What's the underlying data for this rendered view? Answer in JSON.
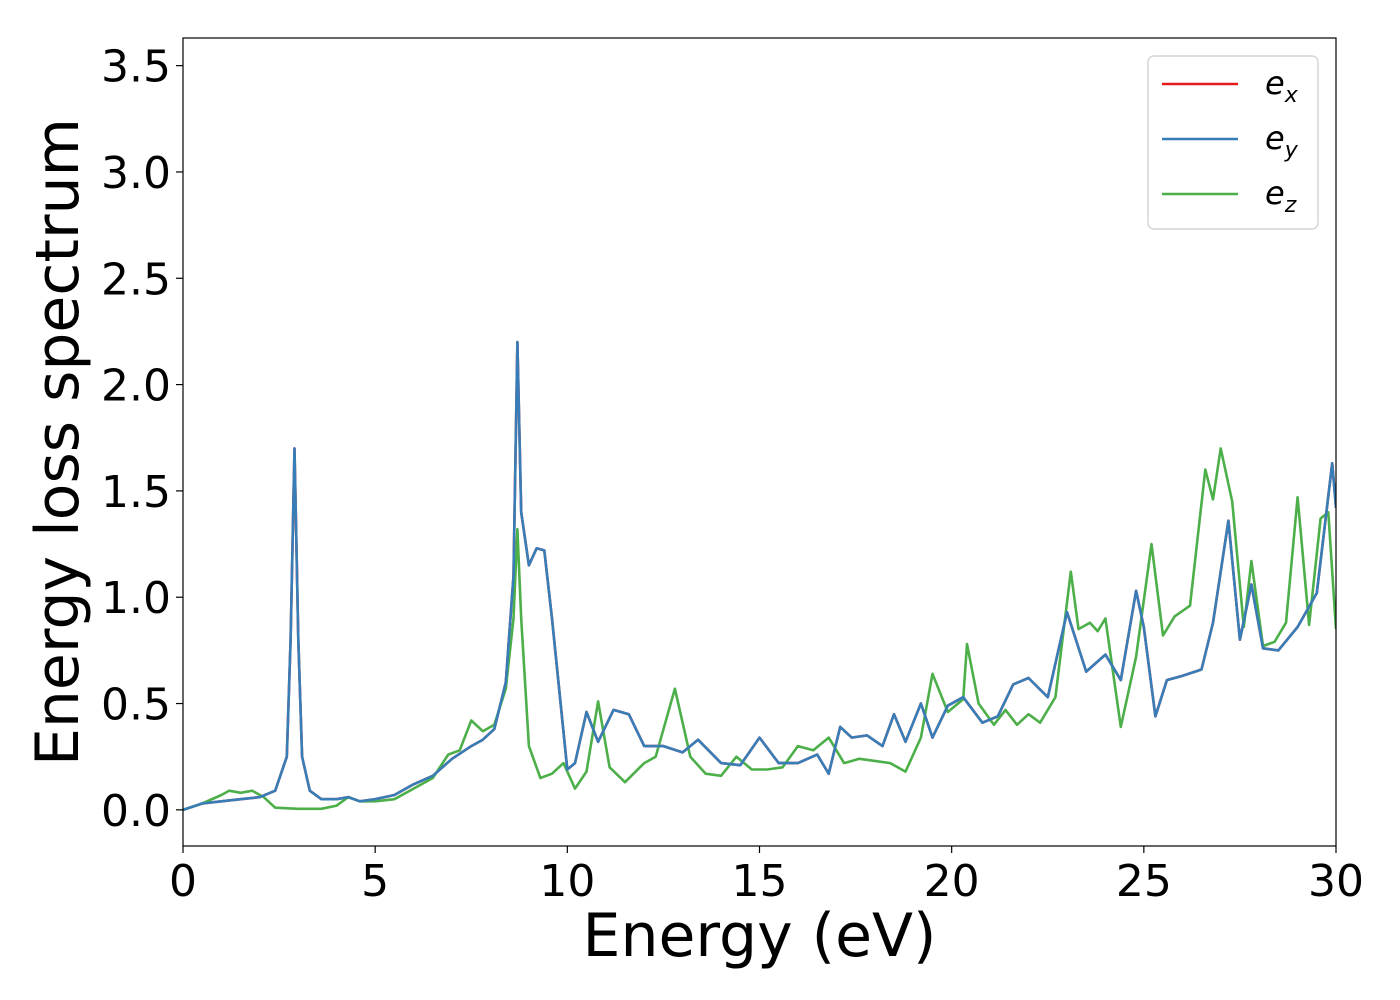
{
  "chart_data": {
    "type": "line",
    "title": "",
    "xlabel": "Energy (eV)",
    "ylabel": "Energy loss spectrum",
    "xlim": [
      0,
      30
    ],
    "ylim": [
      -0.17,
      3.63
    ],
    "xticks": [
      "0",
      "5",
      "10",
      "15",
      "20",
      "25",
      "30"
    ],
    "yticks": [
      "0.0",
      "0.5",
      "1.0",
      "1.5",
      "2.0",
      "2.5",
      "3.0",
      "3.5"
    ],
    "grid": false,
    "legend_position": "top-right",
    "series": [
      {
        "name": "e_x",
        "label_base": "e",
        "label_sub": "x",
        "color": "#e41a1c",
        "x": [
          0,
          0.5,
          1,
          1.5,
          2,
          2.4,
          2.7,
          2.8,
          2.9,
          3.0,
          3.1,
          3.3,
          3.6,
          4,
          4.3,
          4.6,
          5,
          5.5,
          6,
          6.5,
          7,
          7.5,
          7.8,
          8.1,
          8.4,
          8.6,
          8.7,
          8.8,
          9.0,
          9.2,
          9.4,
          9.6,
          10,
          10.2,
          10.5,
          10.8,
          11.2,
          11.6,
          12,
          12.5,
          13,
          13.4,
          14,
          14.5,
          15,
          15.5,
          16,
          16.5,
          16.8,
          17.1,
          17.4,
          17.8,
          18.2,
          18.5,
          18.8,
          19.2,
          19.5,
          19.9,
          20.3,
          20.8,
          21.2,
          21.6,
          22,
          22.5,
          23,
          23.5,
          24,
          24.4,
          24.8,
          25.0,
          25.3,
          25.6,
          26,
          26.5,
          26.8,
          27.2,
          27.5,
          27.8,
          28.1,
          28.5,
          29,
          29.5,
          29.9,
          30
        ],
        "y": [
          0.0,
          0.03,
          0.04,
          0.05,
          0.06,
          0.09,
          0.25,
          0.8,
          1.7,
          0.8,
          0.25,
          0.09,
          0.05,
          0.05,
          0.06,
          0.04,
          0.05,
          0.07,
          0.12,
          0.16,
          0.24,
          0.3,
          0.33,
          0.38,
          0.6,
          1.1,
          2.2,
          1.4,
          1.15,
          1.23,
          1.22,
          0.9,
          0.19,
          0.22,
          0.46,
          0.32,
          0.47,
          0.45,
          0.3,
          0.3,
          0.27,
          0.33,
          0.22,
          0.21,
          0.34,
          0.22,
          0.22,
          0.26,
          0.17,
          0.39,
          0.34,
          0.35,
          0.3,
          0.45,
          0.32,
          0.5,
          0.34,
          0.49,
          0.53,
          0.41,
          0.44,
          0.59,
          0.62,
          0.53,
          0.93,
          0.65,
          0.73,
          0.61,
          1.03,
          0.86,
          0.44,
          0.61,
          0.63,
          0.66,
          0.88,
          1.36,
          0.8,
          1.06,
          0.76,
          0.75,
          0.86,
          1.02,
          1.63,
          1.42
        ]
      },
      {
        "name": "e_y",
        "label_base": "e",
        "label_sub": "y",
        "color": "#377eb8",
        "x": [
          0,
          0.5,
          1,
          1.5,
          2,
          2.4,
          2.7,
          2.8,
          2.9,
          3.0,
          3.1,
          3.3,
          3.6,
          4,
          4.3,
          4.6,
          5,
          5.5,
          6,
          6.5,
          7,
          7.5,
          7.8,
          8.1,
          8.4,
          8.6,
          8.7,
          8.8,
          9.0,
          9.2,
          9.4,
          9.6,
          10,
          10.2,
          10.5,
          10.8,
          11.2,
          11.6,
          12,
          12.5,
          13,
          13.4,
          14,
          14.5,
          15,
          15.5,
          16,
          16.5,
          16.8,
          17.1,
          17.4,
          17.8,
          18.2,
          18.5,
          18.8,
          19.2,
          19.5,
          19.9,
          20.3,
          20.8,
          21.2,
          21.6,
          22,
          22.5,
          23,
          23.5,
          24,
          24.4,
          24.8,
          25.0,
          25.3,
          25.6,
          26,
          26.5,
          26.8,
          27.2,
          27.5,
          27.8,
          28.1,
          28.5,
          29,
          29.5,
          29.9,
          30
        ],
        "y": [
          0.0,
          0.03,
          0.04,
          0.05,
          0.06,
          0.09,
          0.25,
          0.8,
          1.7,
          0.8,
          0.25,
          0.09,
          0.05,
          0.05,
          0.06,
          0.04,
          0.05,
          0.07,
          0.12,
          0.16,
          0.24,
          0.3,
          0.33,
          0.38,
          0.6,
          1.1,
          2.2,
          1.4,
          1.15,
          1.23,
          1.22,
          0.9,
          0.19,
          0.22,
          0.46,
          0.32,
          0.47,
          0.45,
          0.3,
          0.3,
          0.27,
          0.33,
          0.22,
          0.21,
          0.34,
          0.22,
          0.22,
          0.26,
          0.17,
          0.39,
          0.34,
          0.35,
          0.3,
          0.45,
          0.32,
          0.5,
          0.34,
          0.49,
          0.53,
          0.41,
          0.44,
          0.59,
          0.62,
          0.53,
          0.93,
          0.65,
          0.73,
          0.61,
          1.03,
          0.86,
          0.44,
          0.61,
          0.63,
          0.66,
          0.88,
          1.36,
          0.8,
          1.06,
          0.76,
          0.75,
          0.86,
          1.02,
          1.63,
          1.42
        ]
      },
      {
        "name": "e_z",
        "label_base": "e",
        "label_sub": "z",
        "color": "#4daf4a",
        "x": [
          0,
          0.5,
          1,
          1.2,
          1.5,
          1.8,
          2.1,
          2.4,
          3,
          3.6,
          4,
          4.3,
          4.6,
          5,
          5.5,
          6,
          6.5,
          6.9,
          7.2,
          7.5,
          7.8,
          8.1,
          8.4,
          8.6,
          8.7,
          8.8,
          9.0,
          9.3,
          9.6,
          9.9,
          10.2,
          10.5,
          10.8,
          11.1,
          11.5,
          12,
          12.3,
          12.8,
          13.2,
          13.6,
          14,
          14.4,
          14.8,
          15.2,
          15.6,
          16,
          16.4,
          16.8,
          17.2,
          17.6,
          18,
          18.4,
          18.8,
          19.2,
          19.5,
          19.9,
          20.3,
          20.4,
          20.7,
          21.1,
          21.4,
          21.7,
          22.0,
          22.3,
          22.7,
          23.1,
          23.3,
          23.6,
          23.8,
          24.0,
          24.4,
          24.8,
          25.2,
          25.5,
          25.8,
          26.2,
          26.6,
          26.8,
          27.0,
          27.3,
          27.6,
          27.8,
          28.1,
          28.4,
          28.7,
          29.0,
          29.3,
          29.6,
          29.8,
          30
        ],
        "y": [
          0.0,
          0.03,
          0.07,
          0.09,
          0.08,
          0.09,
          0.06,
          0.01,
          0.005,
          0.005,
          0.02,
          0.06,
          0.04,
          0.04,
          0.05,
          0.1,
          0.15,
          0.26,
          0.28,
          0.42,
          0.37,
          0.4,
          0.57,
          0.9,
          1.32,
          0.9,
          0.3,
          0.15,
          0.17,
          0.22,
          0.1,
          0.18,
          0.51,
          0.2,
          0.13,
          0.22,
          0.25,
          0.57,
          0.25,
          0.17,
          0.16,
          0.25,
          0.19,
          0.19,
          0.2,
          0.3,
          0.28,
          0.34,
          0.22,
          0.24,
          0.23,
          0.22,
          0.18,
          0.34,
          0.64,
          0.46,
          0.52,
          0.78,
          0.5,
          0.4,
          0.47,
          0.4,
          0.45,
          0.41,
          0.53,
          1.12,
          0.85,
          0.88,
          0.84,
          0.9,
          0.39,
          0.72,
          1.25,
          0.82,
          0.91,
          0.96,
          1.6,
          1.46,
          1.7,
          1.45,
          0.86,
          1.17,
          0.77,
          0.79,
          0.88,
          1.47,
          0.87,
          1.37,
          1.4,
          0.85
        ]
      }
    ]
  }
}
